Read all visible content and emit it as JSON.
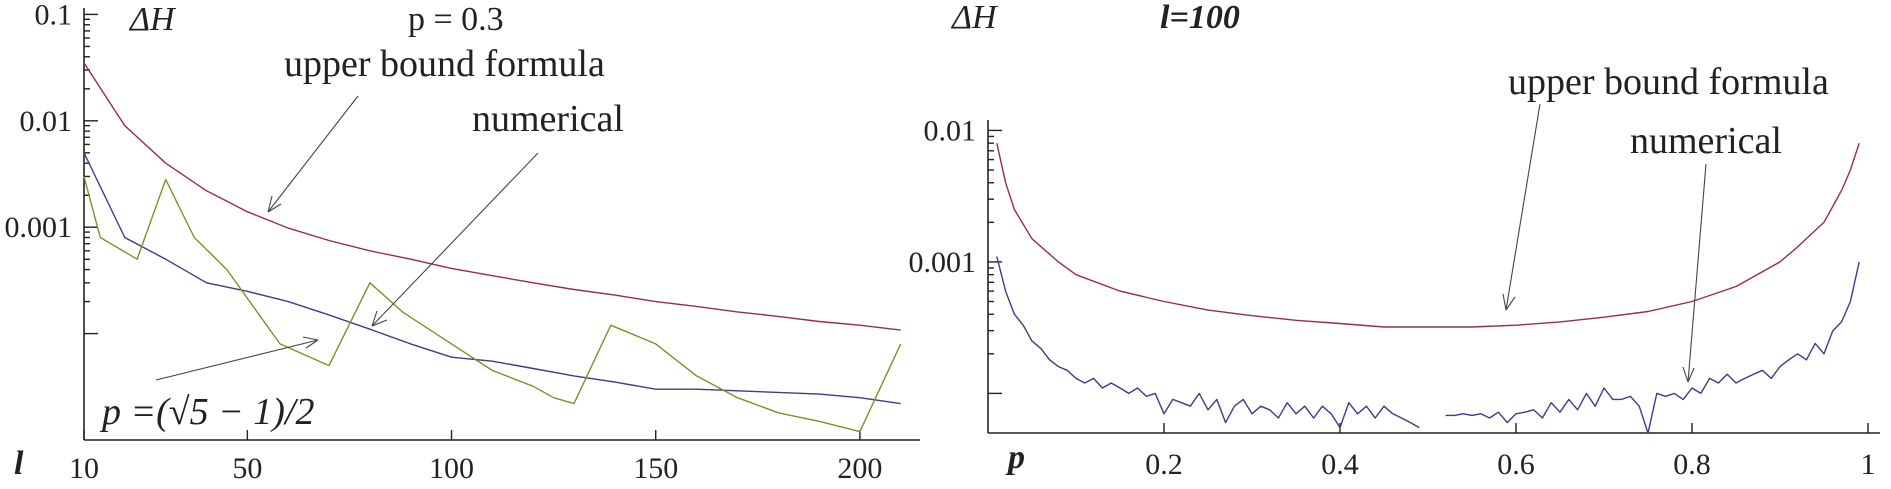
{
  "chart_data": [
    {
      "type": "line",
      "title": "p = 0.3",
      "ylabel": "ΔH",
      "xlabel": "l",
      "y_scale": "log",
      "xlim": [
        10,
        213
      ],
      "ylim": [
        1e-05,
        0.12
      ],
      "x_ticks": [
        10,
        50,
        100,
        150,
        200
      ],
      "y_ticks": [
        {
          "value": 0.1,
          "label": "0.1"
        },
        {
          "value": 0.01,
          "label": "0.01"
        },
        {
          "value": 0.001,
          "label": "0.001"
        },
        {
          "value": 0.0001,
          "label": ""
        }
      ],
      "annotations": [
        "upper bound formula",
        "numerical",
        "p =(√5 − 1)/2"
      ],
      "series": [
        {
          "key": "upper_bound",
          "color": "#9a2a55",
          "x": [
            10,
            20,
            30,
            40,
            50,
            60,
            70,
            80,
            90,
            100,
            110,
            120,
            130,
            140,
            150,
            160,
            170,
            180,
            190,
            200,
            210
          ],
          "y": [
            0.035,
            0.009,
            0.004,
            0.0022,
            0.0014,
            0.00098,
            0.00075,
            0.0006,
            0.0005,
            0.00041,
            0.00035,
            0.0003,
            0.00026,
            0.00023,
            0.0002,
            0.00018,
            0.00016,
            0.000145,
            0.00013,
            0.00012,
            0.000108
          ]
        },
        {
          "key": "numerical",
          "color": "#3c3c8c",
          "x": [
            10,
            20,
            30,
            40,
            50,
            60,
            70,
            80,
            90,
            100,
            110,
            120,
            130,
            140,
            150,
            160,
            170,
            180,
            190,
            200,
            210
          ],
          "y": [
            0.005,
            0.0008,
            0.0005,
            0.0003,
            0.00025,
            0.0002,
            0.00015,
            0.00011,
            8e-05,
            6e-05,
            5.5e-05,
            4.7e-05,
            4e-05,
            3.5e-05,
            3e-05,
            3e-05,
            2.9e-05,
            2.8e-05,
            2.7e-05,
            2.5e-05,
            2.2e-05
          ]
        },
        {
          "key": "golden",
          "color": "#8a8a2a",
          "x": [
            10,
            14,
            23,
            30,
            37,
            45,
            58,
            70,
            80,
            88,
            100,
            110,
            120,
            125,
            130,
            139,
            150,
            160,
            170,
            180,
            190,
            200,
            210
          ],
          "y": [
            0.003,
            0.0008,
            0.0005,
            0.0028,
            0.0008,
            0.0004,
            8e-05,
            5e-05,
            0.0003,
            0.00016,
            8e-05,
            4.5e-05,
            3.2e-05,
            2.5e-05,
            2.2e-05,
            0.00012,
            8e-05,
            4e-05,
            2.5e-05,
            1.8e-05,
            1.5e-05,
            1.2e-05,
            8e-05
          ]
        }
      ]
    },
    {
      "type": "line",
      "title": "l=100",
      "ylabel": "ΔH",
      "xlabel": "p",
      "y_scale": "log",
      "xlim": [
        0,
        1
      ],
      "ylim": [
        5e-05,
        0.012
      ],
      "x_ticks": [
        {
          "value": 0.2,
          "label": "0.2"
        },
        {
          "value": 0.4,
          "label": "0.4"
        },
        {
          "value": 0.6,
          "label": "0.6"
        },
        {
          "value": 0.8,
          "label": "0.8"
        },
        {
          "value": 1.0,
          "label": "1"
        }
      ],
      "y_ticks": [
        {
          "value": 0.01,
          "label": "0.01"
        },
        {
          "value": 0.001,
          "label": "0.001"
        },
        {
          "value": 0.0001,
          "label": ""
        }
      ],
      "annotations": [
        "upper bound formula",
        "numerical"
      ],
      "series": [
        {
          "key": "upper_bound",
          "color": "#9a2a55",
          "x": [
            0.01,
            0.02,
            0.03,
            0.05,
            0.08,
            0.1,
            0.15,
            0.2,
            0.25,
            0.3,
            0.35,
            0.4,
            0.45,
            0.5,
            0.55,
            0.6,
            0.65,
            0.7,
            0.75,
            0.8,
            0.85,
            0.9,
            0.92,
            0.95,
            0.97,
            0.98,
            0.99
          ],
          "y": [
            0.008,
            0.004,
            0.0025,
            0.0015,
            0.001,
            0.0008,
            0.0006,
            0.0005,
            0.00043,
            0.00039,
            0.00036,
            0.00034,
            0.00032,
            0.00032,
            0.00032,
            0.00033,
            0.00035,
            0.00038,
            0.00042,
            0.0005,
            0.00065,
            0.001,
            0.0013,
            0.002,
            0.0035,
            0.005,
            0.008
          ]
        },
        {
          "key": "numerical",
          "color": "#3c3c8c",
          "x": [
            0.01,
            0.02,
            0.03,
            0.04,
            0.05,
            0.06,
            0.07,
            0.08,
            0.09,
            0.1,
            0.11,
            0.12,
            0.13,
            0.14,
            0.15,
            0.16,
            0.17,
            0.18,
            0.19,
            0.2,
            0.21,
            0.22,
            0.23,
            0.24,
            0.25,
            0.26,
            0.27,
            0.28,
            0.29,
            0.3,
            0.31,
            0.32,
            0.33,
            0.34,
            0.35,
            0.36,
            0.37,
            0.38,
            0.39,
            0.4,
            0.41,
            0.42,
            0.43,
            0.44,
            0.45,
            0.46,
            0.47,
            0.48,
            0.49,
            null,
            0.52,
            0.53,
            0.54,
            0.55,
            0.56,
            0.57,
            0.58,
            0.59,
            0.6,
            0.61,
            0.62,
            0.63,
            0.64,
            0.65,
            0.66,
            0.67,
            0.68,
            0.69,
            0.7,
            0.71,
            0.72,
            0.73,
            0.74,
            0.75,
            0.76,
            0.77,
            0.78,
            0.79,
            0.8,
            0.81,
            0.82,
            0.83,
            0.84,
            0.85,
            0.86,
            0.87,
            0.88,
            0.89,
            0.9,
            0.91,
            0.92,
            0.93,
            0.94,
            0.95,
            0.96,
            0.97,
            0.98,
            0.99
          ],
          "y": [
            0.0011,
            0.0006,
            0.0004,
            0.00033,
            0.00025,
            0.00022,
            0.00018,
            0.00016,
            0.00015,
            0.00013,
            0.00012,
            0.00013,
            0.00011,
            0.00012,
            0.00011,
            0.0001,
            0.00011,
            9.5e-05,
            0.0001,
            7e-05,
            9e-05,
            8.5e-05,
            8e-05,
            0.0001,
            7.5e-05,
            9e-05,
            6e-05,
            8e-05,
            9e-05,
            7e-05,
            8e-05,
            7.5e-05,
            6.5e-05,
            8.5e-05,
            7e-05,
            8e-05,
            6.5e-05,
            8e-05,
            7e-05,
            5.5e-05,
            8.5e-05,
            7e-05,
            8e-05,
            6.5e-05,
            8e-05,
            7e-05,
            6.5e-05,
            6e-05,
            5.5e-05,
            null,
            6.8e-05,
            6.8e-05,
            7e-05,
            6.8e-05,
            7e-05,
            6.5e-05,
            7.2e-05,
            6e-05,
            7e-05,
            7.2e-05,
            7.5e-05,
            6.5e-05,
            8.5e-05,
            7.2e-05,
            9e-05,
            7.5e-05,
            0.0001,
            8e-05,
            0.00011,
            9e-05,
            9e-05,
            9.5e-05,
            8e-05,
            5e-05,
            0.0001,
            9.5e-05,
            0.0001,
            9e-05,
            0.00011,
            0.0001,
            0.00013,
            0.00012,
            0.00014,
            0.00012,
            0.00013,
            0.00014,
            0.00015,
            0.00013,
            0.00016,
            0.00018,
            0.0002,
            0.00018,
            0.00024,
            0.0002,
            0.0003,
            0.00035,
            0.0005,
            0.001
          ]
        }
      ]
    }
  ]
}
